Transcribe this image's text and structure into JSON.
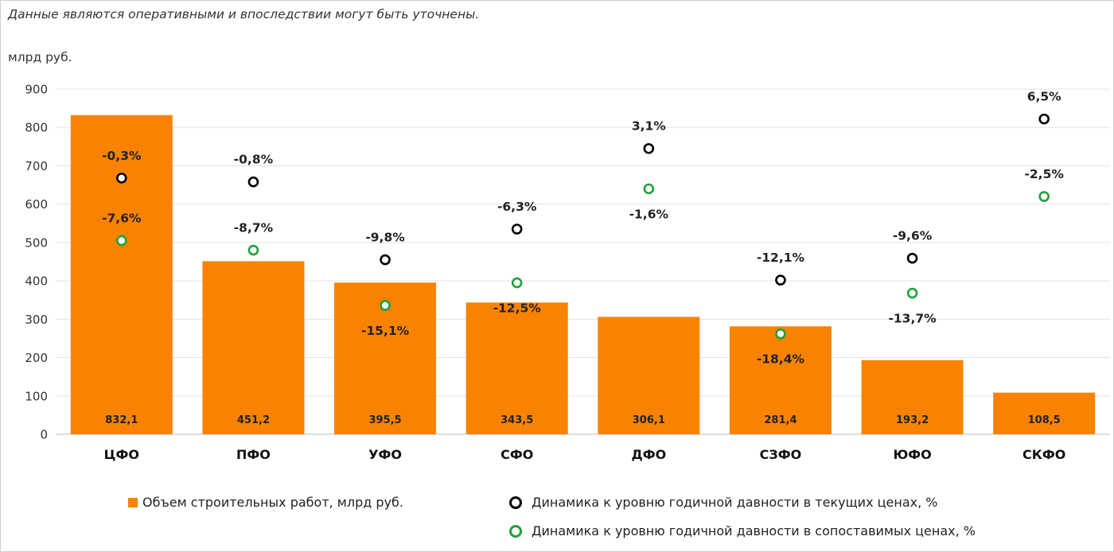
{
  "note": "Данные являются оперативными и впоследствии могут быть уточнены.",
  "unit_label": "млрд руб.",
  "chart_data": {
    "type": "bar",
    "categories": [
      "ЦФО",
      "ПФО",
      "УФО",
      "СФО",
      "ДФО",
      "СЗФО",
      "ЮФО",
      "СКФО"
    ],
    "ylim": [
      0,
      900
    ],
    "yticks": [
      0,
      100,
      200,
      300,
      400,
      500,
      600,
      700,
      800,
      900
    ],
    "grid": true,
    "legend_position": "bottom",
    "series": [
      {
        "name": "Объем строительных работ, млрд руб.",
        "type": "bar",
        "color": "#f98301",
        "values": [
          832.1,
          451.2,
          395.5,
          343.5,
          306.1,
          281.4,
          193.2,
          108.5
        ],
        "labels": [
          "832,1",
          "451,2",
          "395,5",
          "343,5",
          "306,1",
          "281,4",
          "193,2",
          "108,5"
        ]
      },
      {
        "name": "Динамика к уровню годичной давности в текущих ценах, %",
        "type": "scatter",
        "color": "#000000",
        "values": [
          668,
          658,
          455,
          535,
          745,
          402,
          459,
          822
        ],
        "labels": [
          "-0,3%",
          "-0,8%",
          "-9,8%",
          "-6,3%",
          "3,1%",
          "-12,1%",
          "-9,6%",
          "6,5%"
        ]
      },
      {
        "name": "Динамика к уровню годичной давности в сопоставимых ценах, %",
        "type": "scatter",
        "color": "#1fa23a",
        "values": [
          505,
          480,
          336,
          395,
          640,
          262,
          368,
          620
        ],
        "labels": [
          "-7,6%",
          "-8,7%",
          "-15,1%",
          "-12,5%",
          "-1,6%",
          "-18,4%",
          "-13,7%",
          "-2,5%"
        ]
      }
    ]
  }
}
